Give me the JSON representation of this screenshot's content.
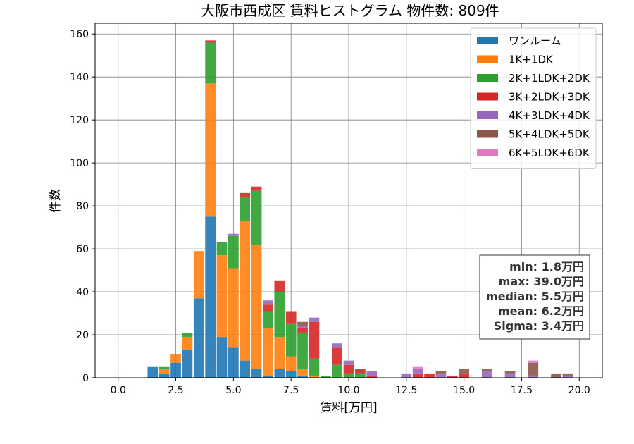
{
  "chart_data": {
    "type": "bar",
    "title": "大阪市西成区 賃料ヒストグラム  物件数: 809件",
    "xlabel": "賃料[万円]",
    "ylabel": "件数",
    "xlim": [
      -1.0,
      21.0
    ],
    "ylim": [
      0,
      165
    ],
    "xticks": [
      0.0,
      2.5,
      5.0,
      7.5,
      10.0,
      12.5,
      15.0,
      17.5,
      20.0
    ],
    "xtick_labels": [
      "0.0",
      "2.5",
      "5.0",
      "7.5",
      "10.0",
      "12.5",
      "15.0",
      "17.5",
      "20.0"
    ],
    "yticks": [
      0,
      20,
      40,
      60,
      80,
      100,
      120,
      140,
      160
    ],
    "ytick_labels": [
      "0",
      "20",
      "40",
      "60",
      "80",
      "100",
      "120",
      "140",
      "160"
    ],
    "grid": true,
    "stacked": true,
    "bin_width": 0.5,
    "bin_centers": [
      1.5,
      2.0,
      2.5,
      3.0,
      3.5,
      4.0,
      4.5,
      5.0,
      5.5,
      6.0,
      6.5,
      7.0,
      7.5,
      8.0,
      8.5,
      9.0,
      9.5,
      10.0,
      10.5,
      11.0,
      11.5,
      12.0,
      12.5,
      13.0,
      13.5,
      14.0,
      14.5,
      15.0,
      15.5,
      16.0,
      16.5,
      17.0,
      17.5,
      18.0,
      18.5,
      19.0,
      19.5
    ],
    "series": [
      {
        "name": "ワンルーム",
        "color": "#1f77b4",
        "values": [
          5,
          2,
          7,
          13,
          37,
          75,
          19,
          14,
          8,
          4,
          1,
          4,
          3,
          1,
          0,
          0,
          0,
          0,
          0,
          0,
          0,
          0,
          0,
          0,
          0,
          0,
          0,
          0,
          0,
          0,
          0,
          0,
          0,
          0,
          0,
          0,
          0
        ]
      },
      {
        "name": "1K+1DK",
        "color": "#ff7f0e",
        "values": [
          0,
          2,
          4,
          6,
          22,
          62,
          38,
          37,
          65,
          58,
          22,
          15,
          7,
          3,
          1,
          0,
          0,
          0,
          0,
          0,
          0,
          0,
          0,
          0,
          0,
          0,
          0,
          0,
          0,
          0,
          0,
          0,
          0,
          0,
          0,
          0,
          0
        ]
      },
      {
        "name": "2K+1LDK+2DK",
        "color": "#2ca02c",
        "values": [
          0,
          1,
          0,
          2,
          0,
          19,
          6,
          15,
          11,
          25,
          8,
          21,
          15,
          17,
          8,
          1,
          6,
          2,
          2,
          0,
          0,
          0,
          0,
          0,
          0,
          0,
          0,
          0,
          0,
          0,
          0,
          0,
          0,
          0,
          0,
          0,
          0
        ]
      },
      {
        "name": "3K+2LDK+3DK",
        "color": "#d62728",
        "values": [
          0,
          0,
          0,
          0,
          0,
          1,
          0,
          0,
          2,
          2,
          3,
          5,
          6,
          2,
          17,
          0,
          8,
          4,
          2,
          1,
          0,
          0,
          0,
          2,
          2,
          0,
          1,
          2,
          0,
          0,
          0,
          0,
          0,
          0,
          0,
          0,
          0
        ]
      },
      {
        "name": "4K+3LDK+4DK",
        "color": "#9467bd",
        "values": [
          0,
          0,
          0,
          0,
          0,
          0,
          0,
          1,
          0,
          0,
          2,
          0,
          0,
          1,
          2,
          0,
          2,
          2,
          0,
          2,
          0,
          0,
          2,
          2,
          0,
          2,
          0,
          0,
          0,
          3,
          0,
          2,
          0,
          1,
          0,
          0,
          1
        ]
      },
      {
        "name": "5K+4LDK+5DK",
        "color": "#8c564b",
        "values": [
          0,
          0,
          0,
          0,
          0,
          0,
          0,
          0,
          0,
          0,
          0,
          0,
          0,
          2,
          0,
          0,
          0,
          0,
          0,
          0,
          0,
          0,
          0,
          0,
          0,
          1,
          0,
          2,
          0,
          1,
          0,
          1,
          0,
          6,
          0,
          2,
          1
        ]
      },
      {
        "name": "6K+5LDK+6DK",
        "color": "#e377c2",
        "values": [
          0,
          0,
          0,
          0,
          0,
          0,
          0,
          0,
          0,
          0,
          0,
          0,
          0,
          0,
          0,
          0,
          0,
          0,
          0,
          0,
          0,
          0,
          0,
          1,
          0,
          0,
          0,
          0,
          0,
          0,
          0,
          0,
          0,
          1,
          0,
          0,
          0
        ]
      }
    ],
    "legend_location": "top-right",
    "stats_box": {
      "location": "right",
      "lines": [
        "min: 1.8万円",
        "max: 39.0万円",
        "median: 5.5万円",
        "mean: 6.2万円",
        "Sigma: 3.4万円"
      ]
    }
  }
}
